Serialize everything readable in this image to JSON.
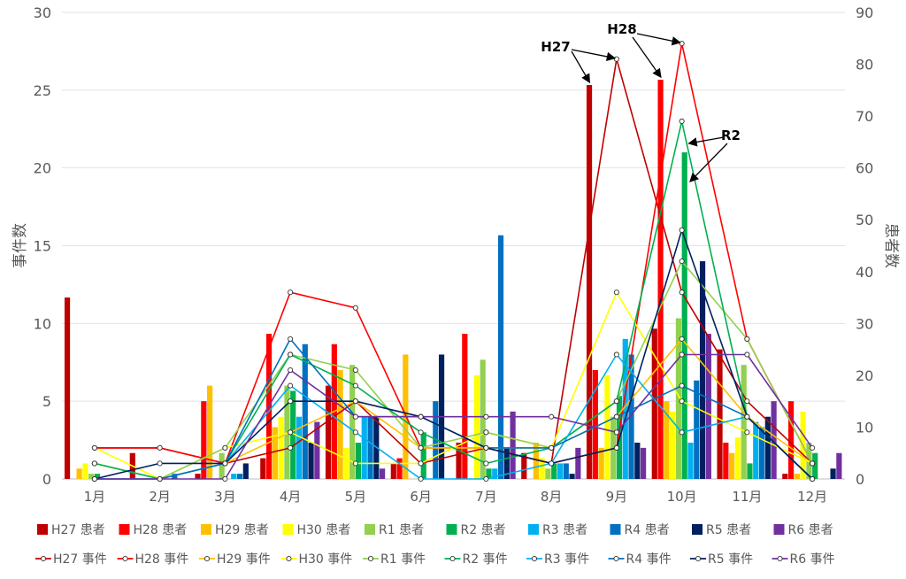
{
  "chart_data": {
    "type": "bar+line",
    "categories": [
      "1月",
      "2月",
      "3月",
      "4月",
      "5月",
      "6月",
      "7月",
      "8月",
      "9月",
      "10月",
      "11月",
      "12月"
    ],
    "ylabel_left": "事件数",
    "ylabel_right": "患者数",
    "ylim_left": [
      0,
      30
    ],
    "ylim_right": [
      0,
      90
    ],
    "yticks_left": [
      "0",
      "5",
      "10",
      "15",
      "20",
      "25",
      "30"
    ],
    "yticks_right": [
      "0",
      "10",
      "20",
      "30",
      "40",
      "50",
      "60",
      "70",
      "80",
      "90"
    ],
    "patients_series": [
      {
        "name": "H27 患者",
        "color": "#c00000",
        "values": [
          35,
          5,
          1,
          4,
          18,
          3,
          7,
          5,
          76,
          29,
          25,
          1
        ]
      },
      {
        "name": "H28 患者",
        "color": "#ff0000",
        "values": [
          0,
          0,
          15,
          28,
          26,
          4,
          28,
          0,
          21,
          77,
          7,
          15
        ]
      },
      {
        "name": "H29 患者",
        "color": "#ffc000",
        "values": [
          2,
          0,
          18,
          10,
          21,
          24,
          0,
          7,
          6,
          15,
          5,
          1
        ]
      },
      {
        "name": "H30 患者",
        "color": "#ffff00",
        "values": [
          3,
          0,
          0,
          12,
          6,
          0,
          20,
          4,
          20,
          13,
          8,
          13
        ]
      },
      {
        "name": "R1 患者",
        "color": "#92d050",
        "values": [
          1,
          0,
          5,
          18,
          22,
          0,
          23,
          2,
          12,
          31,
          22,
          7
        ]
      },
      {
        "name": "R2 患者",
        "color": "#00b050",
        "values": [
          1,
          0,
          0,
          17,
          7,
          9,
          2,
          3,
          16,
          63,
          3,
          5
        ]
      },
      {
        "name": "R3 患者",
        "color": "#00b0f0",
        "values": [
          0,
          0,
          1,
          12,
          12,
          0,
          2,
          3,
          27,
          7,
          11,
          0
        ]
      },
      {
        "name": "R4 患者",
        "color": "#0070c0",
        "values": [
          0,
          1,
          1,
          26,
          12,
          15,
          47,
          3,
          24,
          19,
          10,
          0
        ]
      },
      {
        "name": "R5 患者",
        "color": "#002060",
        "values": [
          0,
          0,
          3,
          7,
          12,
          24,
          6,
          1,
          7,
          42,
          12,
          2
        ]
      },
      {
        "name": "R6 患者",
        "color": "#7030a0",
        "values": [
          0,
          0,
          0,
          11,
          2,
          0,
          13,
          6,
          6,
          28,
          15,
          5
        ]
      }
    ],
    "incidents_series": [
      {
        "name": "H27 事件",
        "color": "#c00000",
        "values": [
          2,
          2,
          1,
          2,
          5,
          1,
          2,
          1,
          27,
          12,
          5,
          1
        ]
      },
      {
        "name": "H28 事件",
        "color": "#ff0000",
        "values": [
          2,
          2,
          1,
          12,
          11,
          2,
          2,
          1,
          2,
          28,
          9,
          1
        ]
      },
      {
        "name": "H29 事件",
        "color": "#ffc000",
        "values": [
          1,
          0,
          1,
          3,
          5,
          2,
          2,
          2,
          4,
          9,
          4,
          1
        ]
      },
      {
        "name": "H30 事件",
        "color": "#ffff00",
        "values": [
          2,
          0,
          2,
          3,
          1,
          1,
          3,
          2,
          12,
          5,
          3,
          1
        ]
      },
      {
        "name": "R1 事件",
        "color": "#92d050",
        "values": [
          1,
          0,
          2,
          8,
          7,
          2,
          3,
          2,
          5,
          14,
          9,
          1
        ]
      },
      {
        "name": "R2 事件",
        "color": "#00b050",
        "values": [
          1,
          0,
          1,
          8,
          6,
          3,
          1,
          2,
          5,
          23,
          4,
          0
        ]
      },
      {
        "name": "R3 事件",
        "color": "#00b0f0",
        "values": [
          0,
          0,
          1,
          6,
          3,
          0,
          0,
          1,
          8,
          3,
          4,
          0
        ]
      },
      {
        "name": "R4 事件",
        "color": "#0070c0",
        "values": [
          0,
          0,
          1,
          9,
          4,
          4,
          2,
          2,
          4,
          6,
          4,
          0
        ]
      },
      {
        "name": "R5 事件",
        "color": "#002060",
        "values": [
          0,
          1,
          1,
          5,
          5,
          4,
          2,
          1,
          2,
          16,
          4,
          0
        ]
      },
      {
        "name": "R6 事件",
        "color": "#7030a0",
        "values": [
          0,
          0,
          0,
          7,
          4,
          4,
          4,
          4,
          3,
          8,
          8,
          2
        ]
      }
    ],
    "annotations": [
      {
        "label": "H27",
        "series": "H27",
        "months": [
          "9月"
        ]
      },
      {
        "label": "H28",
        "series": "H28",
        "months": [
          "10月"
        ]
      },
      {
        "label": "R2",
        "series": "R2",
        "months": [
          "10月"
        ]
      }
    ],
    "grid": true,
    "legend_position": "bottom"
  }
}
